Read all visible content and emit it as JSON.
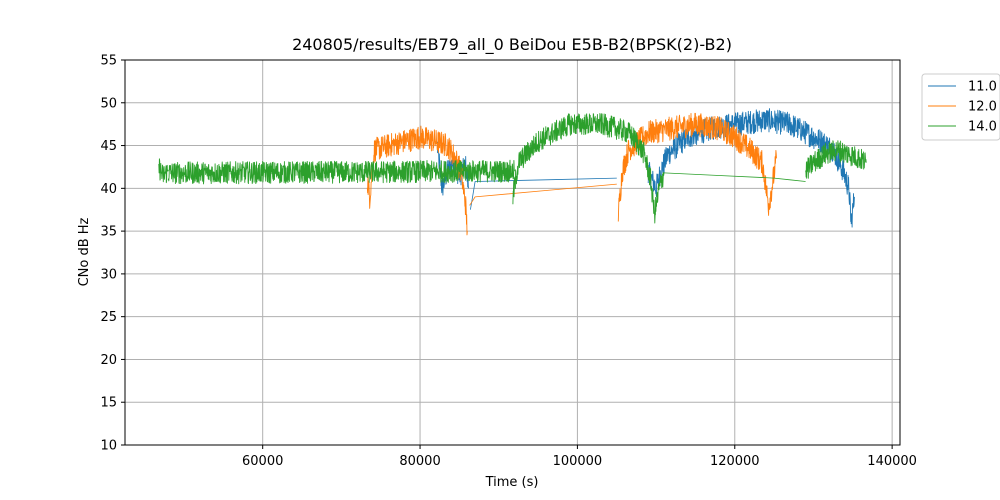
{
  "chart_data": {
    "type": "line",
    "title": "240805/results/EB79_all_0 BeiDou E5B-B2(BPSK(2)-B2)",
    "xlabel": "Time (s)",
    "ylabel": "CNo dB Hz",
    "xlim": [
      42500,
      141000
    ],
    "ylim": [
      10,
      55
    ],
    "xticks": [
      60000,
      80000,
      100000,
      120000,
      140000
    ],
    "yticks": [
      10,
      15,
      20,
      25,
      30,
      35,
      40,
      45,
      50,
      55
    ],
    "grid": true,
    "legend_position": "outside-top-right",
    "series": [
      {
        "name": "11.0",
        "color": "#1f77b4",
        "noise": 1.4,
        "segments": [
          [
            [
              82200,
              45
            ],
            [
              82800,
              40
            ],
            [
              83500,
              42
            ],
            [
              84200,
              43
            ],
            [
              85000,
              41.5
            ],
            [
              85800,
              42.5
            ],
            [
              86200,
              40
            ]
          ],
          [
            [
              86400,
              37.5
            ],
            [
              87000,
              40.8
            ],
            [
              105000,
              41.2
            ]
          ],
          [
            [
              109000,
              42
            ],
            [
              110000,
              40
            ],
            [
              110600,
              42
            ],
            [
              111500,
              44
            ],
            [
              114000,
              46
            ],
            [
              117000,
              47
            ],
            [
              120000,
              47.5
            ],
            [
              124000,
              48
            ],
            [
              127000,
              47.5
            ],
            [
              129000,
              46.5
            ],
            [
              131000,
              45.5
            ],
            [
              132500,
              44.5
            ],
            [
              133800,
              42
            ],
            [
              134500,
              40
            ],
            [
              134800,
              36
            ],
            [
              135200,
              39
            ]
          ]
        ]
      },
      {
        "name": "12.0",
        "color": "#ff7f0e",
        "noise": 1.4,
        "segments": [
          [
            [
              73300,
              41
            ],
            [
              73600,
              39
            ],
            [
              74200,
              44.5
            ],
            [
              76000,
              45
            ],
            [
              78000,
              45.5
            ],
            [
              80000,
              46
            ],
            [
              82000,
              45.5
            ],
            [
              83500,
              45
            ],
            [
              84500,
              43.5
            ],
            [
              85200,
              42
            ],
            [
              85800,
              38
            ],
            [
              86000,
              35
            ]
          ],
          [
            [
              86300,
              38
            ],
            [
              87000,
              39
            ],
            [
              105000,
              40.5
            ]
          ],
          [
            [
              105200,
              37
            ],
            [
              105700,
              42
            ],
            [
              106500,
              44.5
            ],
            [
              109000,
              46.5
            ],
            [
              112000,
              47
            ],
            [
              115000,
              47.5
            ],
            [
              118000,
              47
            ],
            [
              120000,
              46
            ],
            [
              122000,
              44.5
            ],
            [
              123500,
              43
            ],
            [
              124300,
              38
            ],
            [
              124700,
              40
            ],
            [
              125300,
              43.5
            ]
          ]
        ]
      },
      {
        "name": "14.0",
        "color": "#2ca02c",
        "noise": 1.3,
        "segments": [
          [
            [
              46800,
              42.5
            ],
            [
              47300,
              41.5
            ],
            [
              48000,
              42
            ]
          ],
          [
            [
              48000,
              41.8
            ],
            [
              73500,
              41.9
            ],
            [
              86000,
              42
            ],
            [
              92000,
              42
            ]
          ],
          [
            [
              91800,
              39
            ],
            [
              92500,
              43
            ],
            [
              93500,
              44
            ],
            [
              95000,
              45.5
            ],
            [
              97000,
              46.5
            ],
            [
              99000,
              47.5
            ],
            [
              101000,
              47.5
            ],
            [
              103000,
              47.5
            ],
            [
              105000,
              47
            ],
            [
              106500,
              46.5
            ],
            [
              107500,
              45.5
            ],
            [
              108500,
              44
            ],
            [
              109300,
              41
            ],
            [
              109800,
              37
            ],
            [
              110400,
              40
            ],
            [
              111000,
              41.8
            ]
          ],
          [
            [
              111000,
              41.8
            ],
            [
              125000,
              41.2
            ],
            [
              129000,
              40.8
            ]
          ],
          [
            [
              129000,
              42
            ],
            [
              130000,
              43
            ],
            [
              131500,
              44
            ],
            [
              133000,
              44.5
            ],
            [
              134500,
              44
            ],
            [
              135800,
              43.5
            ],
            [
              136700,
              43
            ]
          ]
        ]
      }
    ]
  }
}
